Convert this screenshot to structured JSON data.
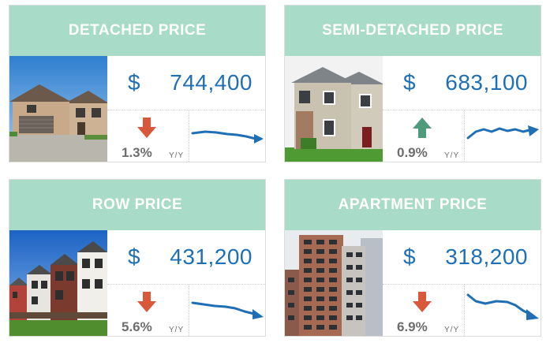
{
  "cards": [
    {
      "title": "DETACHED PRICE",
      "currency": "$",
      "price": "744,400",
      "change": "1.3%",
      "period": "Y/Y",
      "direction": "down",
      "arrow_color": "#d9573a",
      "photo": "detached-house-photo",
      "trend_icon": "trend-line-down-icon"
    },
    {
      "title": "SEMI-DETACHED PRICE",
      "currency": "$",
      "price": "683,100",
      "change": "0.9%",
      "period": "Y/Y",
      "direction": "up",
      "arrow_color": "#4e9a7a",
      "photo": "semi-detached-house-photo",
      "trend_icon": "trend-line-up-icon"
    },
    {
      "title": "ROW PRICE",
      "currency": "$",
      "price": "431,200",
      "change": "5.6%",
      "period": "Y/Y",
      "direction": "down",
      "arrow_color": "#d9573a",
      "photo": "row-house-photo",
      "trend_icon": "trend-line-down-icon"
    },
    {
      "title": "APARTMENT PRICE",
      "currency": "$",
      "price": "318,200",
      "change": "6.9%",
      "period": "Y/Y",
      "direction": "down",
      "arrow_color": "#d9573a",
      "photo": "apartment-building-photo",
      "trend_icon": "trend-line-down-icon"
    }
  ],
  "colors": {
    "header_bg": "#a8dcc8",
    "price_text": "#1f6fb5",
    "trend_line": "#1f6fb5",
    "muted_text": "#6d6d6d"
  }
}
